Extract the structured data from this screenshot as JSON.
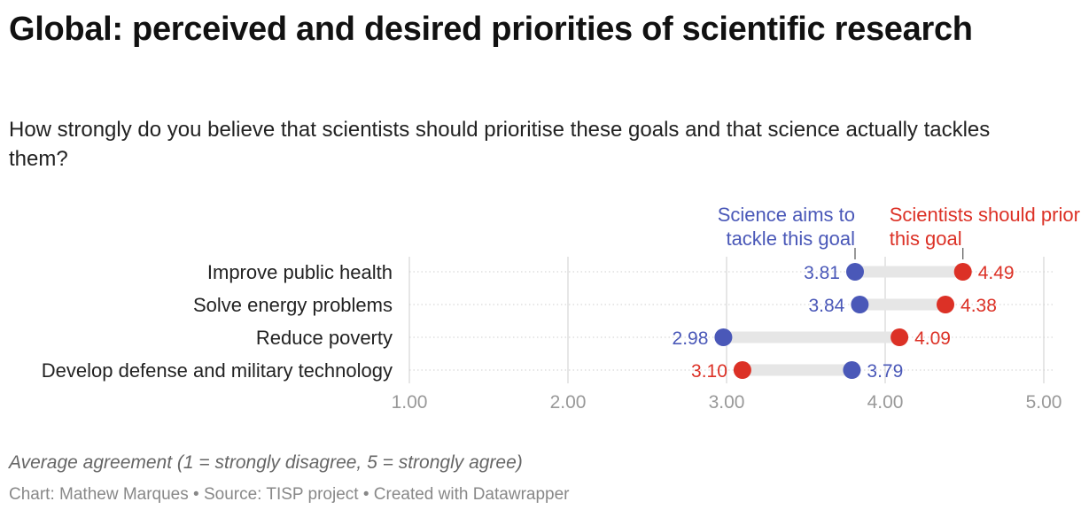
{
  "title": "Global: perceived and desired priorities of scientific research",
  "subtitle": "How strongly do you believe that scientists should prioritise these goals and that science actually tackles them?",
  "footer": {
    "note": "Average agreement (1 = strongly disagree, 5 = strongly agree)",
    "credit": "Chart: Mathew Marques • Source: TISP project • Created with Datawrapper"
  },
  "colors": {
    "aims": "#4a58b8",
    "should": "#dc3126",
    "connector": "#e6e6e6",
    "grid": "#dddddd",
    "tick": "#999999",
    "label": "#222222"
  },
  "chart_data": {
    "type": "dot",
    "categories": [
      "Improve public health",
      "Solve energy problems",
      "Reduce poverty",
      "Develop defense and military technology"
    ],
    "series": [
      {
        "name": "Science aims to tackle this goal",
        "color": "#4a58b8",
        "values": [
          3.81,
          3.84,
          2.98,
          3.79
        ],
        "labels": [
          "3.81",
          "3.84",
          "2.98",
          "3.79"
        ]
      },
      {
        "name": "Scientists should prioritise this goal",
        "color": "#dc3126",
        "values": [
          4.49,
          4.38,
          4.09,
          3.1
        ],
        "labels": [
          "4.49",
          "4.38",
          "4.09",
          "3.10"
        ]
      }
    ],
    "xlim": [
      1,
      5
    ],
    "xticks": [
      1,
      2,
      3,
      4,
      5
    ],
    "xtick_labels": [
      "1.00",
      "2.00",
      "3.00",
      "4.00",
      "5.00"
    ],
    "legend_placement": "top-right",
    "xlabel": "Average agreement (1 = strongly disagree, 5 = strongly agree)",
    "grid": true
  }
}
